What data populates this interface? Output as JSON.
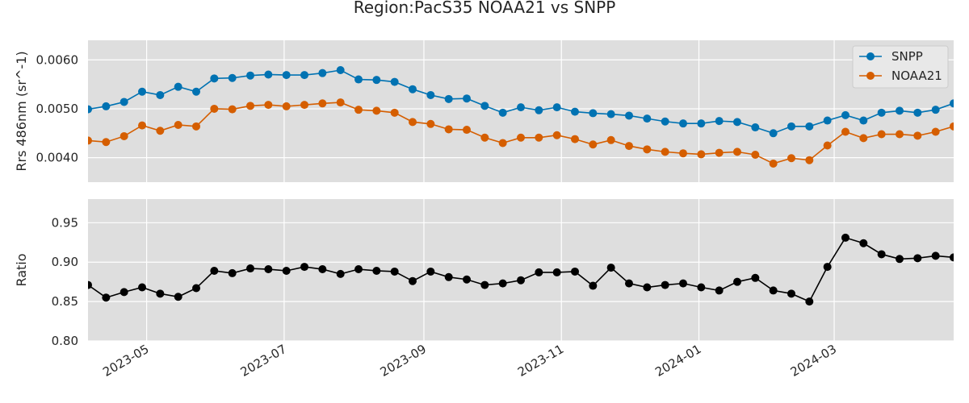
{
  "chart_data": {
    "type": "line",
    "title": "Region:PacS35 NOAA21 vs SNPP",
    "legend_position": "top-right",
    "grid": true,
    "x": [
      "2023-04-05",
      "2023-04-13",
      "2023-04-21",
      "2023-04-29",
      "2023-05-07",
      "2023-05-15",
      "2023-05-23",
      "2023-05-31",
      "2023-06-08",
      "2023-06-16",
      "2023-06-24",
      "2023-07-02",
      "2023-07-10",
      "2023-07-18",
      "2023-07-26",
      "2023-08-03",
      "2023-08-11",
      "2023-08-19",
      "2023-08-27",
      "2023-09-04",
      "2023-09-12",
      "2023-09-20",
      "2023-09-28",
      "2023-10-06",
      "2023-10-14",
      "2023-10-22",
      "2023-10-30",
      "2023-11-07",
      "2023-11-15",
      "2023-11-23",
      "2023-12-01",
      "2023-12-09",
      "2023-12-17",
      "2023-12-25",
      "2024-01-02",
      "2024-01-10",
      "2024-01-18",
      "2024-01-26",
      "2024-02-03",
      "2024-02-11",
      "2024-02-19",
      "2024-02-27",
      "2024-03-06",
      "2024-03-14",
      "2024-03-22",
      "2024-03-30",
      "2024-04-07",
      "2024-04-15",
      "2024-04-23"
    ],
    "x_ticks": [
      "2023-05",
      "2023-07",
      "2023-09",
      "2023-11",
      "2024-01",
      "2024-03"
    ],
    "x_tick_dates": [
      "2023-05-01",
      "2023-07-01",
      "2023-09-01",
      "2023-11-01",
      "2024-01-01",
      "2024-03-01"
    ],
    "xlim": [
      "2023-04-05",
      "2024-04-23"
    ],
    "panels": [
      {
        "ylabel": "Rrs 486nm (sr^-1)",
        "ylim": [
          0.0035,
          0.0064
        ],
        "yticks": [
          "0.0040",
          "0.0050",
          "0.0060"
        ],
        "show_legend": true,
        "series": [
          {
            "name": "SNPP",
            "color": "#0072b2",
            "values": [
              0.00499,
              0.00505,
              0.00514,
              0.00535,
              0.00528,
              0.00545,
              0.00535,
              0.00562,
              0.00563,
              0.00568,
              0.0057,
              0.00569,
              0.00569,
              0.00573,
              0.00579,
              0.0056,
              0.00559,
              0.00555,
              0.0054,
              0.00528,
              0.0052,
              0.00521,
              0.00506,
              0.00492,
              0.00503,
              0.00497,
              0.00503,
              0.00494,
              0.00491,
              0.00489,
              0.00486,
              0.0048,
              0.00474,
              0.0047,
              0.0047,
              0.00475,
              0.00473,
              0.00462,
              0.0045,
              0.00464,
              0.00464,
              0.00476,
              0.00487,
              0.00476,
              0.00492,
              0.00496,
              0.00492,
              0.00498,
              0.00511
            ]
          },
          {
            "name": "NOAA21",
            "color": "#d55e00",
            "values": [
              0.00435,
              0.00432,
              0.00444,
              0.00466,
              0.00455,
              0.00467,
              0.00464,
              0.005,
              0.00499,
              0.00506,
              0.00508,
              0.00505,
              0.00508,
              0.00511,
              0.00513,
              0.00498,
              0.00496,
              0.00492,
              0.00473,
              0.00469,
              0.00458,
              0.00457,
              0.00441,
              0.0043,
              0.00441,
              0.00441,
              0.00446,
              0.00438,
              0.00427,
              0.00436,
              0.00424,
              0.00417,
              0.00412,
              0.00409,
              0.00407,
              0.0041,
              0.00412,
              0.00406,
              0.00388,
              0.00399,
              0.00395,
              0.00425,
              0.00453,
              0.0044,
              0.00448,
              0.00448,
              0.00445,
              0.00453,
              0.00464
            ]
          }
        ]
      },
      {
        "ylabel": "Ratio",
        "ylim": [
          0.8,
          0.98
        ],
        "yticks": [
          "0.80",
          "0.85",
          "0.90",
          "0.95"
        ],
        "show_legend": false,
        "series": [
          {
            "name": "",
            "color": "#000000",
            "values": [
              0.871,
              0.855,
              0.862,
              0.868,
              0.86,
              0.856,
              0.867,
              0.889,
              0.886,
              0.892,
              0.891,
              0.889,
              0.894,
              0.891,
              0.885,
              0.891,
              0.889,
              0.888,
              0.876,
              0.888,
              0.881,
              0.878,
              0.871,
              0.873,
              0.877,
              0.887,
              0.887,
              0.888,
              0.87,
              0.893,
              0.873,
              0.868,
              0.871,
              0.873,
              0.868,
              0.864,
              0.875,
              0.88,
              0.864,
              0.86,
              0.85,
              0.894,
              0.931,
              0.924,
              0.91,
              0.904,
              0.905,
              0.908,
              0.906
            ]
          }
        ]
      }
    ]
  }
}
